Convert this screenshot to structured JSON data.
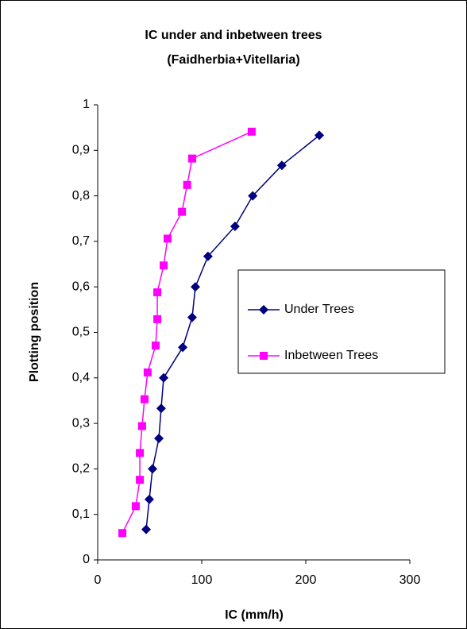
{
  "chart_data": {
    "type": "line",
    "title": "IC under and inbetween trees",
    "subtitle": "(Faidherbia+Vitellaria)",
    "x_label": "IC (mm/h)",
    "y_label": "Plotting position",
    "xlim": [
      0,
      300
    ],
    "xticks": [
      0,
      100,
      200,
      300
    ],
    "ylim": [
      0,
      1
    ],
    "yticks": [
      0,
      {
        "value": 0.1,
        "label": "0,1"
      },
      {
        "value": 0.2,
        "label": "0,2"
      },
      {
        "value": 0.3,
        "label": "0,3"
      },
      {
        "value": 0.4,
        "label": "0,4"
      },
      {
        "value": 0.5,
        "label": "0,5"
      },
      {
        "value": 0.6,
        "label": "0,6"
      },
      {
        "value": 0.7,
        "label": "0,7"
      },
      {
        "value": 0.8,
        "label": "0,8"
      },
      {
        "value": 0.9,
        "label": "0,9"
      },
      1
    ],
    "legend": "right",
    "series": [
      {
        "name": "Under Trees",
        "color": "#000080",
        "marker": "diamond",
        "x": [
          46.6,
          49.6,
          52.7,
          58.8,
          61,
          63.4,
          81.7,
          90.8,
          93.9,
          106,
          132,
          149,
          177,
          213
        ],
        "values": [
          0.067,
          0.133,
          0.2,
          0.267,
          0.333,
          0.4,
          0.467,
          0.533,
          0.6,
          0.667,
          0.733,
          0.8,
          0.867,
          0.933
        ]
      },
      {
        "name": "Inbetween Trees",
        "color": "#ff00ff",
        "marker": "square",
        "x": [
          23.7,
          36.6,
          40.5,
          40.5,
          42.7,
          45,
          48,
          55.7,
          57.3,
          57.3,
          63.4,
          67.2,
          81,
          86,
          90.8,
          148
        ],
        "values": [
          0.059,
          0.118,
          0.176,
          0.235,
          0.294,
          0.353,
          0.412,
          0.471,
          0.529,
          0.588,
          0.647,
          0.706,
          0.765,
          0.824,
          0.882,
          0.941
        ]
      }
    ]
  }
}
